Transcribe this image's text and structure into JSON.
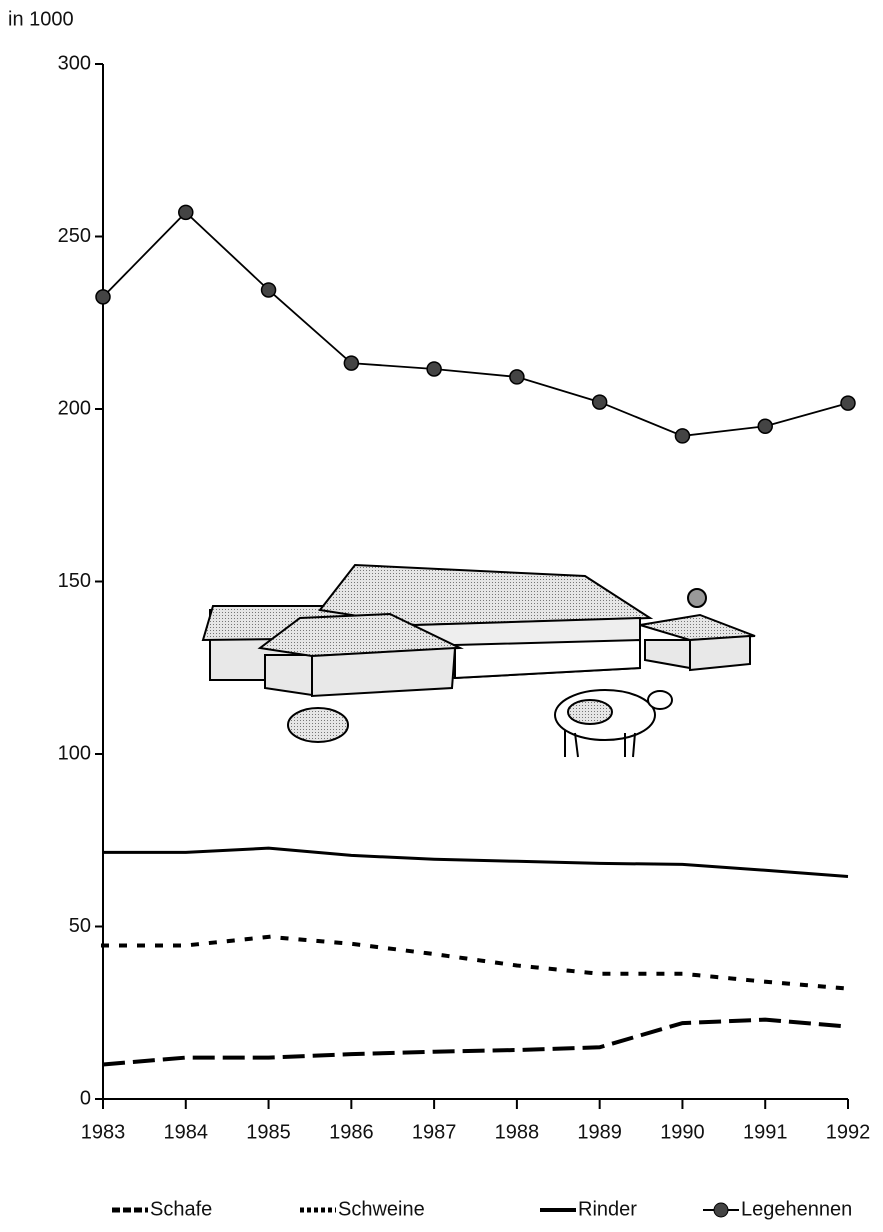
{
  "chart_data": {
    "type": "line",
    "y_label": "in 1000",
    "categories": [
      "1983",
      "1984",
      "1985",
      "1986",
      "1987",
      "1988",
      "1989",
      "1990",
      "1991",
      "1992"
    ],
    "series": [
      {
        "name": "Schafe",
        "color": "#000000",
        "style": "dashed",
        "values": [
          10,
          12,
          12,
          13,
          13.7,
          14.2,
          15,
          22,
          23,
          21
        ]
      },
      {
        "name": "Schweine",
        "color": "#000000",
        "style": "dotted",
        "values": [
          44.5,
          44.5,
          47,
          45,
          42,
          38.7,
          36.3,
          36.3,
          34,
          32
        ]
      },
      {
        "name": "Rinder",
        "color": "#000000",
        "style": "solid",
        "values": [
          71.5,
          71.5,
          72.7,
          70.6,
          69.5,
          68.9,
          68.3,
          68,
          66.3,
          64.5
        ]
      },
      {
        "name": "Legehennen",
        "color": "#000000",
        "style": "solid",
        "marker": "circle",
        "values": [
          232.5,
          257,
          234.5,
          213.3,
          211.6,
          209.3,
          202,
          192.2,
          195,
          201.7
        ]
      }
    ],
    "ylim": [
      0,
      300
    ],
    "yticks": [
      0,
      50,
      100,
      150,
      200,
      250,
      300
    ],
    "legend": "bottom"
  }
}
